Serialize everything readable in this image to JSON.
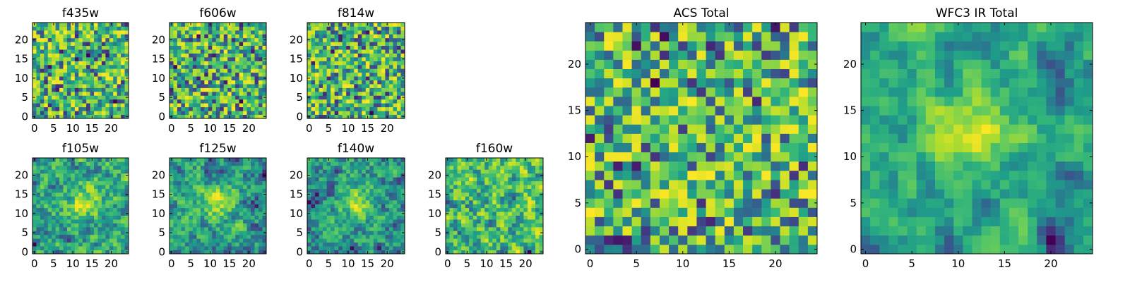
{
  "chart_data": [
    {
      "type": "heatmap",
      "title": "f435w",
      "xlabel": "",
      "ylabel": "",
      "grid_size": 25,
      "seed": 11,
      "smooth": 0,
      "blob": null,
      "xlim": [
        0,
        25
      ],
      "ylim": [
        0,
        25
      ],
      "xticks": [
        0,
        5,
        10,
        15,
        20
      ],
      "yticks": [
        0,
        5,
        10,
        15,
        20
      ],
      "x_tick_labels": [
        "0",
        "5",
        "10",
        "15",
        "20"
      ],
      "y_tick_labels": [
        "0",
        "5",
        "10",
        "15",
        "20"
      ],
      "colormap": "viridis"
    },
    {
      "type": "heatmap",
      "title": "f606w",
      "xlabel": "",
      "ylabel": "",
      "grid_size": 25,
      "seed": 23,
      "smooth": 0,
      "blob": null,
      "xlim": [
        0,
        25
      ],
      "ylim": [
        0,
        25
      ],
      "xticks": [
        0,
        5,
        10,
        15,
        20
      ],
      "yticks": [
        0,
        5,
        10,
        15,
        20
      ],
      "x_tick_labels": [
        "0",
        "5",
        "10",
        "15",
        "20"
      ],
      "y_tick_labels": [
        "0",
        "5",
        "10",
        "15",
        "20"
      ],
      "colormap": "viridis"
    },
    {
      "type": "heatmap",
      "title": "f814w",
      "xlabel": "",
      "ylabel": "",
      "grid_size": 25,
      "seed": 37,
      "smooth": 0,
      "blob": null,
      "xlim": [
        0,
        25
      ],
      "ylim": [
        0,
        25
      ],
      "xticks": [
        0,
        5,
        10,
        15,
        20
      ],
      "yticks": [
        0,
        5,
        10,
        15,
        20
      ],
      "x_tick_labels": [
        "0",
        "5",
        "10",
        "15",
        "20"
      ],
      "y_tick_labels": [
        "0",
        "5",
        "10",
        "15",
        "20"
      ],
      "colormap": "viridis"
    },
    {
      "type": "heatmap",
      "title": "f105w",
      "xlabel": "",
      "ylabel": "",
      "grid_size": 25,
      "seed": 41,
      "smooth": 1,
      "blob": [
        13,
        13
      ],
      "xlim": [
        0,
        25
      ],
      "ylim": [
        0,
        25
      ],
      "xticks": [
        0,
        5,
        10,
        15,
        20
      ],
      "yticks": [
        0,
        5,
        10,
        15,
        20
      ],
      "x_tick_labels": [
        "0",
        "5",
        "10",
        "15",
        "20"
      ],
      "y_tick_labels": [
        "0",
        "5",
        "10",
        "15",
        "20"
      ],
      "colormap": "viridis"
    },
    {
      "type": "heatmap",
      "title": "f125w",
      "xlabel": "",
      "ylabel": "",
      "grid_size": 25,
      "seed": 53,
      "smooth": 1,
      "blob": [
        12,
        13
      ],
      "xlim": [
        0,
        25
      ],
      "ylim": [
        0,
        25
      ],
      "xticks": [
        0,
        5,
        10,
        15,
        20
      ],
      "yticks": [
        0,
        5,
        10,
        15,
        20
      ],
      "x_tick_labels": [
        "0",
        "5",
        "10",
        "15",
        "20"
      ],
      "y_tick_labels": [
        "0",
        "5",
        "10",
        "15",
        "20"
      ],
      "colormap": "viridis"
    },
    {
      "type": "heatmap",
      "title": "f140w",
      "xlabel": "",
      "ylabel": "",
      "grid_size": 25,
      "seed": 67,
      "smooth": 1,
      "blob": [
        12,
        13
      ],
      "xlim": [
        0,
        25
      ],
      "ylim": [
        0,
        25
      ],
      "xticks": [
        0,
        5,
        10,
        15,
        20
      ],
      "yticks": [
        0,
        5,
        10,
        15,
        20
      ],
      "x_tick_labels": [
        "0",
        "5",
        "10",
        "15",
        "20"
      ],
      "y_tick_labels": [
        "0",
        "5",
        "10",
        "15",
        "20"
      ],
      "colormap": "viridis"
    },
    {
      "type": "heatmap",
      "title": "f160w",
      "xlabel": "",
      "ylabel": "",
      "grid_size": 25,
      "seed": 79,
      "smooth": 1,
      "blob": null,
      "xlim": [
        0,
        25
      ],
      "ylim": [
        0,
        25
      ],
      "xticks": [
        0,
        5,
        10,
        15,
        20
      ],
      "yticks": [
        0,
        5,
        10,
        15,
        20
      ],
      "x_tick_labels": [
        "0",
        "5",
        "10",
        "15",
        "20"
      ],
      "y_tick_labels": [
        "0",
        "5",
        "10",
        "15",
        "20"
      ],
      "colormap": "viridis"
    },
    {
      "type": "heatmap",
      "title": "ACS Total",
      "xlabel": "",
      "ylabel": "",
      "grid_size": 25,
      "seed": 97,
      "smooth": 0,
      "blob": null,
      "xlim": [
        0,
        25
      ],
      "ylim": [
        0,
        25
      ],
      "xticks": [
        0,
        5,
        10,
        15,
        20
      ],
      "yticks": [
        0,
        5,
        10,
        15,
        20
      ],
      "x_tick_labels": [
        "0",
        "5",
        "10",
        "15",
        "20"
      ],
      "y_tick_labels": [
        "0",
        "5",
        "10",
        "15",
        "20"
      ],
      "colormap": "viridis"
    },
    {
      "type": "heatmap",
      "title": "WFC3 IR Total",
      "xlabel": "",
      "ylabel": "",
      "grid_size": 25,
      "seed": 131,
      "smooth": 2,
      "blob": [
        12,
        13
      ],
      "xlim": [
        0,
        25
      ],
      "ylim": [
        0,
        25
      ],
      "xticks": [
        0,
        5,
        10,
        15,
        20
      ],
      "yticks": [
        0,
        5,
        10,
        15,
        20
      ],
      "x_tick_labels": [
        "0",
        "5",
        "10",
        "15",
        "20"
      ],
      "y_tick_labels": [
        "0",
        "5",
        "10",
        "15",
        "20"
      ],
      "colormap": "viridis"
    }
  ]
}
